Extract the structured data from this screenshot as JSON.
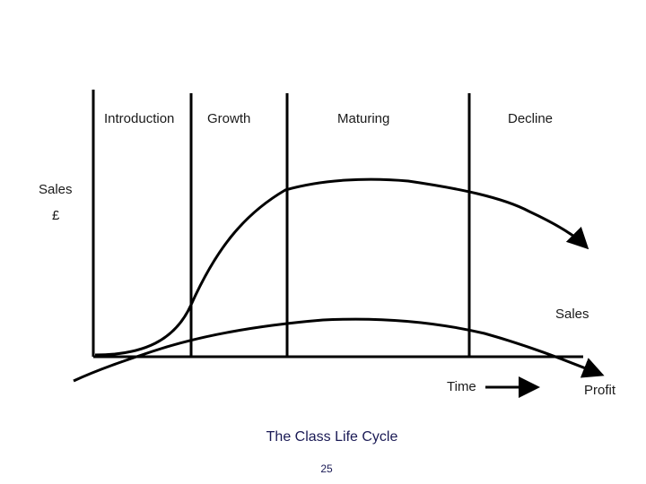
{
  "stages": [
    "Introduction",
    "Growth",
    "Maturing",
    "Decline"
  ],
  "y_axis": {
    "label": "Sales",
    "unit": "£"
  },
  "x_axis": {
    "label": "Time"
  },
  "curves": {
    "sales_label": "Sales",
    "profit_label": "Profit"
  },
  "title": "The Class Life Cycle",
  "page_number": "25",
  "colors": {
    "line": "#000000",
    "title": "#1a1a55"
  },
  "icons": {
    "time_arrow": "arrow-right-icon"
  }
}
